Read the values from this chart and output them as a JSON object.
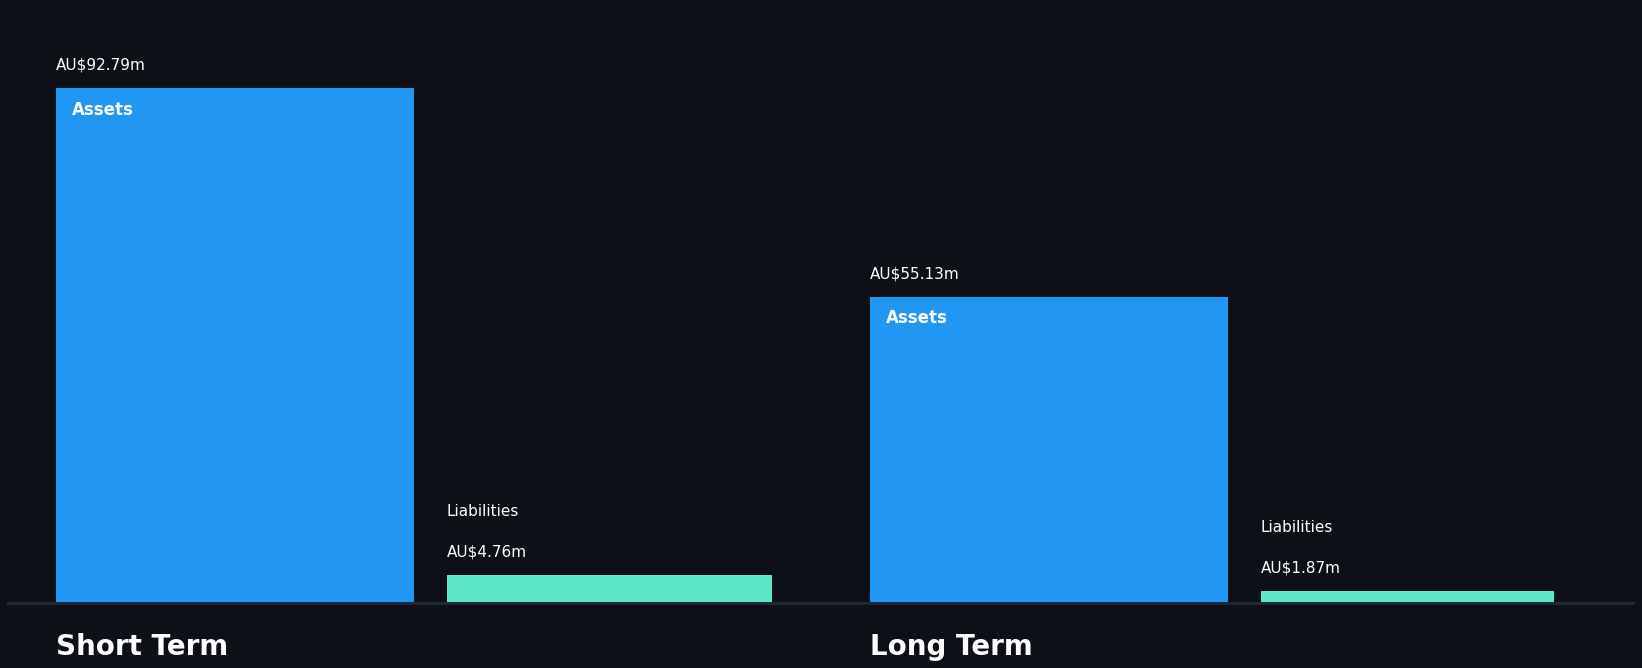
{
  "background_color": "#0d1117",
  "short_term": {
    "assets_value": 92.79,
    "liabilities_value": 4.76,
    "assets_label": "Assets",
    "liabilities_label": "Liabilities",
    "assets_value_label": "AU$92.79m",
    "liabilities_value_label": "AU$4.76m",
    "section_label": "Short Term"
  },
  "long_term": {
    "assets_value": 55.13,
    "liabilities_value": 1.87,
    "assets_label": "Assets",
    "liabilities_label": "Liabilities",
    "assets_value_label": "AU$55.13m",
    "liabilities_value_label": "AU$1.87m",
    "section_label": "Long Term"
  },
  "assets_color": "#2196f3",
  "liabilities_color": "#5ce8c8",
  "text_color": "#ffffff",
  "section_label_fontsize": 20,
  "value_label_fontsize": 11,
  "bar_label_fontsize": 12
}
